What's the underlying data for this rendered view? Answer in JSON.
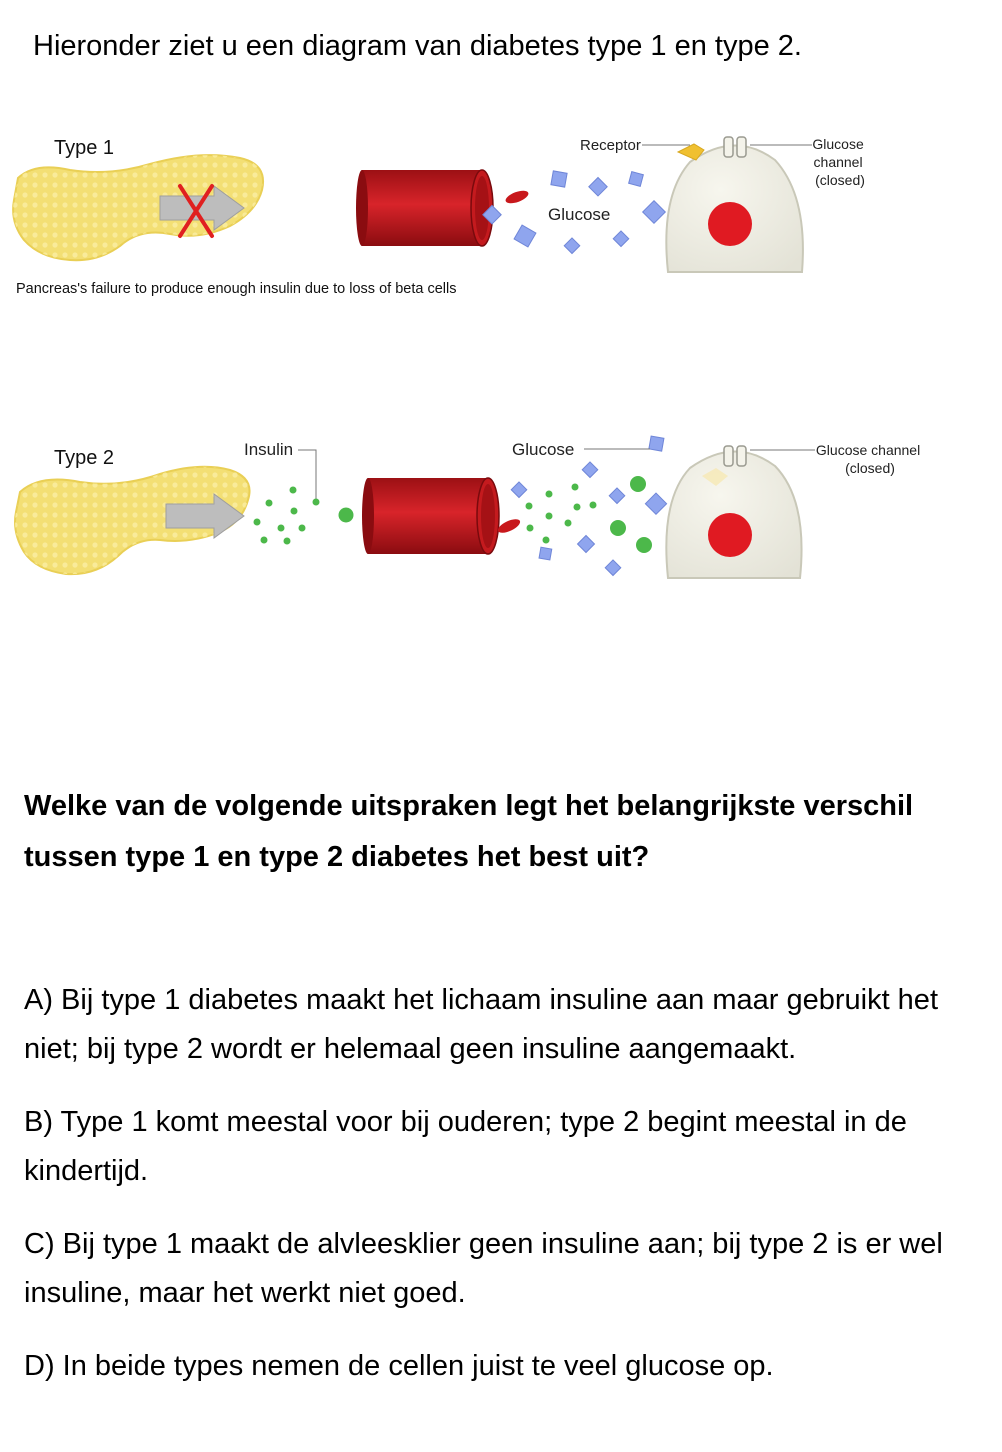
{
  "intro": "Hieronder ziet u een diagram van diabetes type 1 en type 2.",
  "diagram": {
    "type1": {
      "label": "Type 1",
      "receptor_label": "Receptor",
      "glucose_label": "Glucose",
      "channel_label": [
        "Glucose",
        "channel",
        "(closed)"
      ],
      "caption": "Pancreas's failure to produce  enough insulin due to loss of beta cells"
    },
    "type2": {
      "label": "Type 2",
      "insulin_label": "Insulin",
      "glucose_label": "Glucose",
      "channel_label": [
        "Glucose channel",
        "(closed)"
      ]
    },
    "colors": {
      "pancreas": "#f3df74",
      "pancreas_light": "#fbeea3",
      "vessel": "#c8181c",
      "vessel_dark": "#8f0e12",
      "glucose": "#8fa5ee",
      "insulin": "#4cb84a",
      "cell": "#efeee4",
      "nucleus": "#e01a22",
      "cross": "#e02020",
      "arrow": "#b8b8b8"
    }
  },
  "question": "Welke van de volgende uitspraken legt het belangrijkste verschil tussen type 1 en type 2 diabetes het best uit?",
  "options": [
    "A) Bij type 1 diabetes maakt het lichaam insuline aan maar gebruikt het niet; bij type 2 wordt er helemaal geen insuline aangemaakt.",
    "B) Type 1 komt meestal voor bij ouderen; type 2 begint meestal in de kindertijd.",
    "C) Bij type 1 maakt de alvleesklier geen insuline aan; bij type 2 is er wel insuline, maar het werkt niet goed.",
    "D) In beide types nemen de cellen juist te veel glucose op."
  ]
}
